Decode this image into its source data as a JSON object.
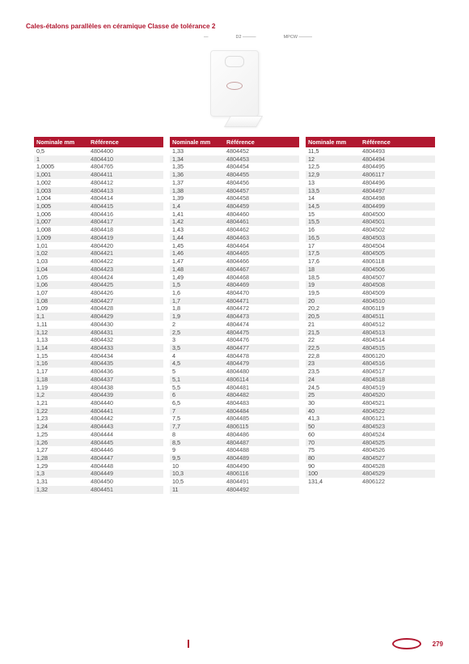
{
  "title": "Cales-étalons parallèles en céramique Classe de tolérance 2",
  "title_color": "#b11830",
  "hero_captions": [
    "—",
    "D2 ———",
    "MPCW ———"
  ],
  "colors": {
    "header_bg": "#b11830",
    "alt_row_bg": "#efefef",
    "accent": "#b11830",
    "text": "#444444"
  },
  "table_header": {
    "col1": "Nominale mm",
    "col2": "Référence"
  },
  "columns": [
    {
      "rows": [
        [
          "0,5",
          "4804400"
        ],
        [
          "1",
          "4804410"
        ],
        [
          "1,0005",
          "4804765"
        ],
        [
          "1,001",
          "4804411"
        ],
        [
          "1,002",
          "4804412"
        ],
        [
          "1,003",
          "4804413"
        ],
        [
          "1,004",
          "4804414"
        ],
        [
          "1,005",
          "4804415"
        ],
        [
          "1,006",
          "4804416"
        ],
        [
          "1,007",
          "4804417"
        ],
        [
          "1,008",
          "4804418"
        ],
        [
          "1,009",
          "4804419"
        ],
        [
          "1,01",
          "4804420"
        ],
        [
          "1,02",
          "4804421"
        ],
        [
          "1,03",
          "4804422"
        ],
        [
          "1,04",
          "4804423"
        ],
        [
          "1,05",
          "4804424"
        ],
        [
          "1,06",
          "4804425"
        ],
        [
          "1,07",
          "4804426"
        ],
        [
          "1,08",
          "4804427"
        ],
        [
          "1,09",
          "4804428"
        ],
        [
          "1,1",
          "4804429"
        ],
        [
          "1,11",
          "4804430"
        ],
        [
          "1,12",
          "4804431"
        ],
        [
          "1,13",
          "4804432"
        ],
        [
          "1,14",
          "4804433"
        ],
        [
          "1,15",
          "4804434"
        ],
        [
          "1,16",
          "4804435"
        ],
        [
          "1,17",
          "4804436"
        ],
        [
          "1,18",
          "4804437"
        ],
        [
          "1,19",
          "4804438"
        ],
        [
          "1,2",
          "4804439"
        ],
        [
          "1,21",
          "4804440"
        ],
        [
          "1,22",
          "4804441"
        ],
        [
          "1,23",
          "4804442"
        ],
        [
          "1,24",
          "4804443"
        ],
        [
          "1,25",
          "4804444"
        ],
        [
          "1,26",
          "4804445"
        ],
        [
          "1,27",
          "4804446"
        ],
        [
          "1,28",
          "4804447"
        ],
        [
          "1,29",
          "4804448"
        ],
        [
          "1,3",
          "4804449"
        ],
        [
          "1,31",
          "4804450"
        ],
        [
          "1,32",
          "4804451"
        ]
      ]
    },
    {
      "rows": [
        [
          "1,33",
          "4804452"
        ],
        [
          "1,34",
          "4804453"
        ],
        [
          "1,35",
          "4804454"
        ],
        [
          "1,36",
          "4804455"
        ],
        [
          "1,37",
          "4804456"
        ],
        [
          "1,38",
          "4804457"
        ],
        [
          "1,39",
          "4804458"
        ],
        [
          "1,4",
          "4804459"
        ],
        [
          "1,41",
          "4804460"
        ],
        [
          "1,42",
          "4804461"
        ],
        [
          "1,43",
          "4804462"
        ],
        [
          "1,44",
          "4804463"
        ],
        [
          "1,45",
          "4804464"
        ],
        [
          "1,46",
          "4804465"
        ],
        [
          "1,47",
          "4804466"
        ],
        [
          "1,48",
          "4804467"
        ],
        [
          "1,49",
          "4804468"
        ],
        [
          "1,5",
          "4804469"
        ],
        [
          "1,6",
          "4804470"
        ],
        [
          "1,7",
          "4804471"
        ],
        [
          "1,8",
          "4804472"
        ],
        [
          "1,9",
          "4804473"
        ],
        [
          "2",
          "4804474"
        ],
        [
          "2,5",
          "4804475"
        ],
        [
          "3",
          "4804476"
        ],
        [
          "3,5",
          "4804477"
        ],
        [
          "4",
          "4804478"
        ],
        [
          "4,5",
          "4804479"
        ],
        [
          "5",
          "4804480"
        ],
        [
          "5,1",
          "4806114"
        ],
        [
          "5,5",
          "4804481"
        ],
        [
          "6",
          "4804482"
        ],
        [
          "6,5",
          "4804483"
        ],
        [
          "7",
          "4804484"
        ],
        [
          "7,5",
          "4804485"
        ],
        [
          "7,7",
          "4806115"
        ],
        [
          "8",
          "4804486"
        ],
        [
          "8,5",
          "4804487"
        ],
        [
          "9",
          "4804488"
        ],
        [
          "9,5",
          "4804489"
        ],
        [
          "10",
          "4804490"
        ],
        [
          "10,3",
          "4806116"
        ],
        [
          "10,5",
          "4804491"
        ],
        [
          "11",
          "4804492"
        ]
      ]
    },
    {
      "rows": [
        [
          "11,5",
          "4804493"
        ],
        [
          "12",
          "4804494"
        ],
        [
          "12,5",
          "4804495"
        ],
        [
          "12,9",
          "4806117"
        ],
        [
          "13",
          "4804496"
        ],
        [
          "13,5",
          "4804497"
        ],
        [
          "14",
          "4804498"
        ],
        [
          "14,5",
          "4804499"
        ],
        [
          "15",
          "4804500"
        ],
        [
          "15,5",
          "4804501"
        ],
        [
          "16",
          "4804502"
        ],
        [
          "16,5",
          "4804503"
        ],
        [
          "17",
          "4804504"
        ],
        [
          "17,5",
          "4804505"
        ],
        [
          "17,6",
          "4806118"
        ],
        [
          "18",
          "4804506"
        ],
        [
          "18,5",
          "4804507"
        ],
        [
          "19",
          "4804508"
        ],
        [
          "19,5",
          "4804509"
        ],
        [
          "20",
          "4804510"
        ],
        [
          "20,2",
          "4806119"
        ],
        [
          "20,5",
          "4804511"
        ],
        [
          "21",
          "4804512"
        ],
        [
          "21,5",
          "4804513"
        ],
        [
          "22",
          "4804514"
        ],
        [
          "22,5",
          "4804515"
        ],
        [
          "22,8",
          "4806120"
        ],
        [
          "23",
          "4804516"
        ],
        [
          "23,5",
          "4804517"
        ],
        [
          "24",
          "4804518"
        ],
        [
          "24,5",
          "4804519"
        ],
        [
          "25",
          "4804520"
        ],
        [
          "30",
          "4804521"
        ],
        [
          "40",
          "4804522"
        ],
        [
          "41,3",
          "4806121"
        ],
        [
          "50",
          "4804523"
        ],
        [
          "60",
          "4804524"
        ],
        [
          "70",
          "4804525"
        ],
        [
          "75",
          "4804526"
        ],
        [
          "80",
          "4804527"
        ],
        [
          "90",
          "4804528"
        ],
        [
          "100",
          "4804529"
        ],
        [
          "131,4",
          "4806122"
        ]
      ]
    }
  ],
  "footer": {
    "page_number": "279",
    "page_number_color": "#b11830"
  }
}
